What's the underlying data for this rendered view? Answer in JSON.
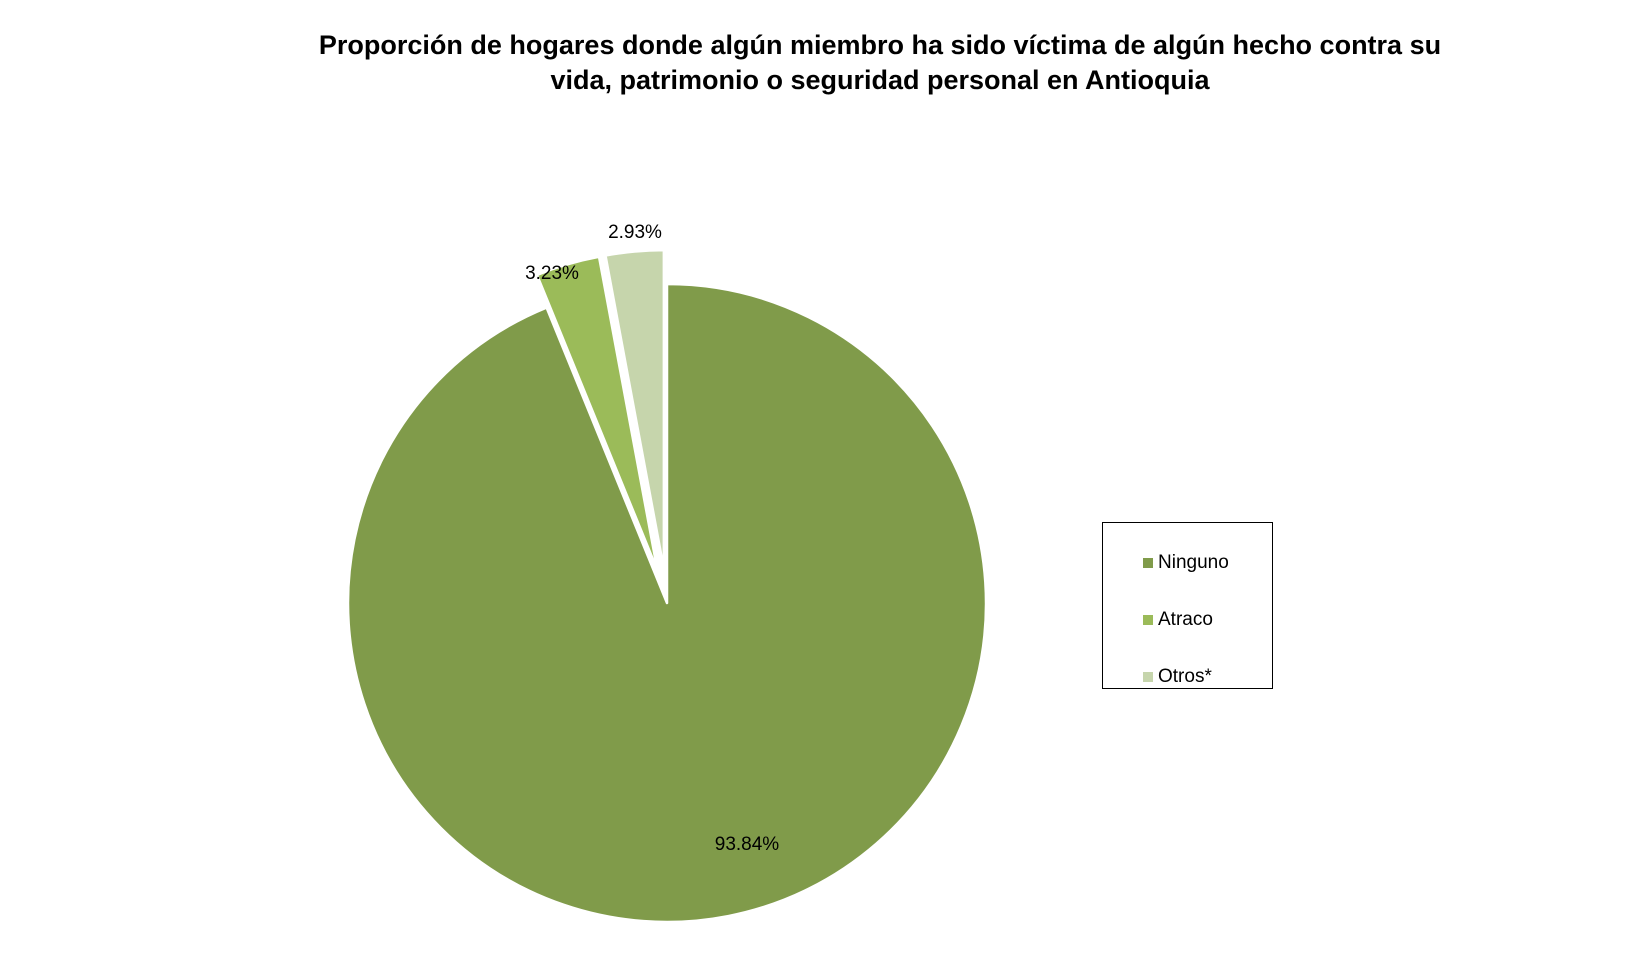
{
  "chart_data": {
    "type": "pie",
    "title": [
      "Proporción de hogares donde algún miembro ha sido víctima de algún hecho contra su",
      "vida, patrimonio o seguridad personal en Antioquia"
    ],
    "slices": [
      {
        "label": "Ninguno",
        "value": 93.84,
        "display": "93.84%",
        "color": "#809B4A",
        "exploded": false
      },
      {
        "label": "Atraco",
        "value": 3.23,
        "display": "3.23%",
        "color": "#9BBB59",
        "exploded": true
      },
      {
        "label": "Otros*",
        "value": 2.93,
        "display": "2.93%",
        "color": "#C6D5AC",
        "exploded": true
      }
    ],
    "legend_position": "right",
    "start_angle": "12 o'clock",
    "direction": "clockwise"
  }
}
